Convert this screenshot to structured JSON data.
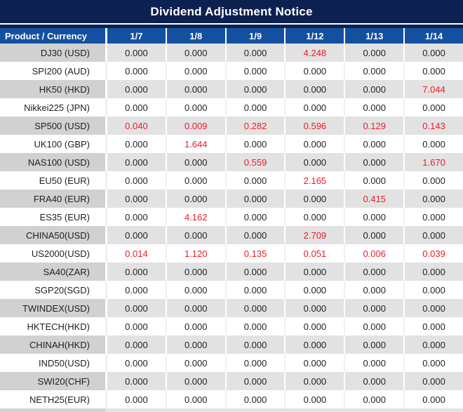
{
  "title": "Dividend Adjustment Notice",
  "colors": {
    "title_bg": "#0d2150",
    "header_bg": "#1450a0",
    "stripe_product_bg": "#d1d1d1",
    "stripe_data_bg": "#e2e2e2",
    "white_row_bg": "#ffffff",
    "value_red": "#ec1c24",
    "value_black": "#1f1f1f",
    "header_text": "#ffffff"
  },
  "table": {
    "product_header": "Product / Currency",
    "date_headers": [
      "1/7",
      "1/8",
      "1/9",
      "1/12",
      "1/13",
      "1/14"
    ],
    "rows": [
      {
        "product": "DJ30 (USD)",
        "values": [
          "0.000",
          "0.000",
          "0.000",
          "4.248",
          "0.000",
          "0.000"
        ],
        "red_flags": [
          false,
          false,
          false,
          true,
          false,
          false
        ]
      },
      {
        "product": "SPI200 (AUD)",
        "values": [
          "0.000",
          "0.000",
          "0.000",
          "0.000",
          "0.000",
          "0.000"
        ],
        "red_flags": [
          false,
          false,
          false,
          false,
          false,
          false
        ]
      },
      {
        "product": "HK50 (HKD)",
        "values": [
          "0.000",
          "0.000",
          "0.000",
          "0.000",
          "0.000",
          "7.044"
        ],
        "red_flags": [
          false,
          false,
          false,
          false,
          false,
          true
        ]
      },
      {
        "product": "Nikkei225 (JPN)",
        "values": [
          "0.000",
          "0.000",
          "0.000",
          "0.000",
          "0.000",
          "0.000"
        ],
        "red_flags": [
          false,
          false,
          false,
          false,
          false,
          false
        ]
      },
      {
        "product": "SP500 (USD)",
        "values": [
          "0.040",
          "0.009",
          "0.282",
          "0.596",
          "0.129",
          "0.143"
        ],
        "red_flags": [
          true,
          true,
          true,
          true,
          true,
          true
        ]
      },
      {
        "product": "UK100 (GBP)",
        "values": [
          "0.000",
          "1.644",
          "0.000",
          "0.000",
          "0.000",
          "0.000"
        ],
        "red_flags": [
          false,
          true,
          false,
          false,
          false,
          false
        ]
      },
      {
        "product": "NAS100 (USD)",
        "values": [
          "0.000",
          "0.000",
          "0.559",
          "0.000",
          "0.000",
          "1.670"
        ],
        "red_flags": [
          false,
          false,
          true,
          false,
          false,
          true
        ]
      },
      {
        "product": "EU50 (EUR)",
        "values": [
          "0.000",
          "0.000",
          "0.000",
          "2.165",
          "0.000",
          "0.000"
        ],
        "red_flags": [
          false,
          false,
          false,
          true,
          false,
          false
        ]
      },
      {
        "product": "FRA40 (EUR)",
        "values": [
          "0.000",
          "0.000",
          "0.000",
          "0.000",
          "0.415",
          "0.000"
        ],
        "red_flags": [
          false,
          false,
          false,
          false,
          true,
          false
        ]
      },
      {
        "product": "ES35 (EUR)",
        "values": [
          "0.000",
          "4.162",
          "0.000",
          "0.000",
          "0.000",
          "0.000"
        ],
        "red_flags": [
          false,
          true,
          false,
          false,
          false,
          false
        ]
      },
      {
        "product": "CHINA50(USD)",
        "values": [
          "0.000",
          "0.000",
          "0.000",
          "2.709",
          "0.000",
          "0.000"
        ],
        "red_flags": [
          false,
          false,
          false,
          true,
          false,
          false
        ]
      },
      {
        "product": "US2000(USD)",
        "values": [
          "0.014",
          "1.120",
          "0.135",
          "0.051",
          "0.006",
          "0.039"
        ],
        "red_flags": [
          true,
          true,
          true,
          true,
          true,
          true
        ]
      },
      {
        "product": "SA40(ZAR)",
        "values": [
          "0.000",
          "0.000",
          "0.000",
          "0.000",
          "0.000",
          "0.000"
        ],
        "red_flags": [
          false,
          false,
          false,
          false,
          false,
          false
        ]
      },
      {
        "product": "SGP20(SGD)",
        "values": [
          "0.000",
          "0.000",
          "0.000",
          "0.000",
          "0.000",
          "0.000"
        ],
        "red_flags": [
          false,
          false,
          false,
          false,
          false,
          false
        ]
      },
      {
        "product": "TWINDEX(USD)",
        "values": [
          "0.000",
          "0.000",
          "0.000",
          "0.000",
          "0.000",
          "0.000"
        ],
        "red_flags": [
          false,
          false,
          false,
          false,
          false,
          false
        ]
      },
      {
        "product": "HKTECH(HKD)",
        "values": [
          "0.000",
          "0.000",
          "0.000",
          "0.000",
          "0.000",
          "0.000"
        ],
        "red_flags": [
          false,
          false,
          false,
          false,
          false,
          false
        ]
      },
      {
        "product": "CHINAH(HKD)",
        "values": [
          "0.000",
          "0.000",
          "0.000",
          "0.000",
          "0.000",
          "0.000"
        ],
        "red_flags": [
          false,
          false,
          false,
          false,
          false,
          false
        ]
      },
      {
        "product": "IND50(USD)",
        "values": [
          "0.000",
          "0.000",
          "0.000",
          "0.000",
          "0.000",
          "0.000"
        ],
        "red_flags": [
          false,
          false,
          false,
          false,
          false,
          false
        ]
      },
      {
        "product": "SWI20(CHF)",
        "values": [
          "0.000",
          "0.000",
          "0.000",
          "0.000",
          "0.000",
          "0.000"
        ],
        "red_flags": [
          false,
          false,
          false,
          false,
          false,
          false
        ]
      },
      {
        "product": "NETH25(EUR)",
        "values": [
          "0.000",
          "0.000",
          "0.000",
          "0.000",
          "0.000",
          "0.000"
        ],
        "red_flags": [
          false,
          false,
          false,
          false,
          false,
          false
        ]
      }
    ]
  }
}
